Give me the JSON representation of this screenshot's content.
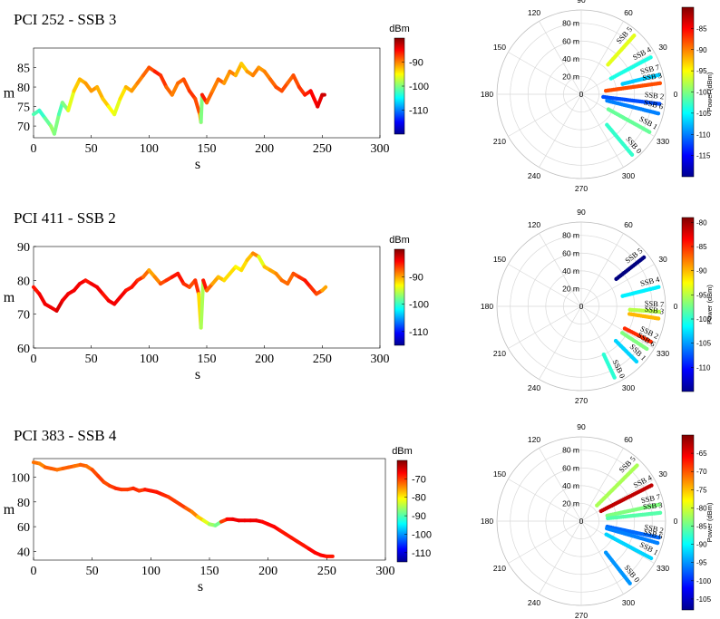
{
  "figure": {
    "panels": [
      {
        "title": "PCI 252 - SSB 3",
        "time": {
          "xlabel": "s",
          "ylabel": "m",
          "xlim": [
            0,
            300
          ],
          "ylim": [
            67,
            90
          ],
          "xticks": [
            0,
            50,
            100,
            150,
            200,
            250,
            300
          ],
          "yticks": [
            70,
            75,
            80,
            85
          ],
          "colorbar": {
            "label": "dBm",
            "range": [
              -120,
              -80
            ],
            "ticks": [
              -90,
              -100,
              -110
            ]
          }
        },
        "polar": {
          "colorbar": {
            "label": "Power (dBm)",
            "range": [
              -120,
              -80
            ],
            "ticks": [
              -85,
              -90,
              -95,
              -100,
              -105,
              -110,
              -115
            ]
          }
        }
      },
      {
        "title": "PCI 411 - SSB 2",
        "time": {
          "xlabel": "s",
          "ylabel": "m",
          "xlim": [
            0,
            300
          ],
          "ylim": [
            60,
            90
          ],
          "xticks": [
            0,
            50,
            100,
            150,
            200,
            250,
            300
          ],
          "yticks": [
            60,
            70,
            80,
            90
          ],
          "colorbar": {
            "label": "dBm",
            "range": [
              -115,
              -80
            ],
            "ticks": [
              -90,
              -100,
              -110
            ]
          }
        },
        "polar": {
          "colorbar": {
            "label": "Power (dBm)",
            "range": [
              -115,
              -79
            ],
            "ticks": [
              -80,
              -85,
              -90,
              -95,
              -100,
              -105,
              -110
            ]
          }
        }
      },
      {
        "title": "PCI 383 - SSB 4",
        "time": {
          "xlabel": "s",
          "ylabel": "m",
          "xlim": [
            0,
            300
          ],
          "ylim": [
            33,
            115
          ],
          "xticks": [
            0,
            50,
            100,
            150,
            200,
            250,
            300
          ],
          "yticks": [
            40,
            60,
            80,
            100
          ],
          "colorbar": {
            "label": "dBm",
            "range": [
              -115,
              -60
            ],
            "ticks": [
              -70,
              -80,
              -90,
              -100,
              -110
            ]
          }
        },
        "polar": {
          "colorbar": {
            "label": "Power (dBm)",
            "range": [
              -108,
              -60
            ],
            "ticks": [
              -65,
              -70,
              -75,
              -80,
              -85,
              -90,
              -95,
              -100,
              -105
            ]
          }
        }
      }
    ],
    "polar_axis": {
      "angle_labels": [
        "0",
        "30",
        "60",
        "90",
        "120",
        "150",
        "180",
        "210",
        "240",
        "270",
        "300",
        "330"
      ],
      "radius_labels": [
        "20 m",
        "40 m",
        "60 m",
        "80 m"
      ]
    }
  },
  "chart_data": [
    {
      "type": "scatter",
      "title": "PCI 252 - SSB 3",
      "xlabel": "s",
      "ylabel": "m",
      "xlim": [
        0,
        300
      ],
      "ylim": [
        67,
        90
      ],
      "colorbar_label": "dBm",
      "series": [
        {
          "x": [
            0,
            5,
            10,
            15,
            18,
            22,
            25,
            30,
            35,
            40,
            45,
            50,
            55,
            60,
            65,
            70,
            75,
            80,
            85,
            90,
            95,
            100,
            105,
            110,
            115,
            120,
            125,
            130,
            135,
            140,
            144,
            145,
            146,
            150,
            155,
            160,
            165,
            170,
            175,
            180,
            185,
            190,
            195,
            200,
            205,
            210,
            215,
            220,
            225,
            230,
            235,
            240,
            243,
            246,
            250,
            252
          ],
          "y": [
            73,
            74,
            72,
            70,
            68,
            73,
            76,
            74,
            79,
            82,
            81,
            79,
            80,
            77,
            75,
            73,
            77,
            80,
            79,
            81,
            83,
            85,
            84,
            83,
            80,
            78,
            81,
            82,
            79,
            77,
            73,
            71,
            78,
            76,
            79,
            82,
            81,
            84,
            83,
            86,
            84,
            83,
            85,
            84,
            82,
            80,
            79,
            81,
            83,
            80,
            78,
            79,
            77,
            75,
            78,
            78
          ],
          "power_dbm": [
            -102,
            -103,
            -101,
            -99,
            -100,
            -102,
            -100,
            -96,
            -93,
            -92,
            -91,
            -91,
            -92,
            -93,
            -95,
            -96,
            -94,
            -92,
            -91,
            -90,
            -89,
            -88,
            -86,
            -87,
            -89,
            -90,
            -89,
            -88,
            -87,
            -88,
            -92,
            -100,
            -86,
            -89,
            -90,
            -89,
            -91,
            -90,
            -92,
            -93,
            -91,
            -90,
            -91,
            -90,
            -89,
            -88,
            -88,
            -89,
            -88,
            -87,
            -86,
            -85,
            -85,
            -84,
            -83,
            -83
          ]
        }
      ]
    },
    {
      "type": "scatter",
      "title": "PCI 411 - SSB 2",
      "xlabel": "s",
      "ylabel": "m",
      "xlim": [
        0,
        300
      ],
      "ylim": [
        60,
        90
      ],
      "colorbar_label": "dBm",
      "series": [
        {
          "x": [
            0,
            5,
            10,
            15,
            20,
            25,
            30,
            35,
            40,
            45,
            50,
            55,
            60,
            65,
            70,
            75,
            80,
            85,
            90,
            95,
            100,
            105,
            110,
            115,
            120,
            125,
            130,
            135,
            140,
            143,
            145,
            147,
            150,
            155,
            160,
            165,
            170,
            175,
            180,
            185,
            190,
            195,
            200,
            205,
            210,
            215,
            220,
            225,
            230,
            235,
            240,
            245,
            250,
            253
          ],
          "y": [
            78,
            76,
            73,
            72,
            71,
            74,
            76,
            77,
            79,
            80,
            79,
            78,
            76,
            74,
            73,
            75,
            77,
            78,
            80,
            81,
            83,
            81,
            79,
            80,
            81,
            82,
            79,
            78,
            80,
            76,
            66,
            80,
            77,
            79,
            81,
            80,
            82,
            84,
            83,
            86,
            88,
            87,
            84,
            83,
            82,
            80,
            79,
            82,
            81,
            80,
            78,
            76,
            77,
            78
          ],
          "power_dbm": [
            -85,
            -84,
            -84,
            -84,
            -83,
            -84,
            -84,
            -84,
            -84,
            -85,
            -84,
            -84,
            -85,
            -84,
            -84,
            -84,
            -85,
            -85,
            -86,
            -88,
            -90,
            -89,
            -87,
            -86,
            -85,
            -85,
            -86,
            -87,
            -86,
            -92,
            -96,
            -85,
            -88,
            -90,
            -91,
            -92,
            -92,
            -93,
            -92,
            -91,
            -89,
            -94,
            -91,
            -90,
            -89,
            -88,
            -88,
            -87,
            -86,
            -85,
            -86,
            -87,
            -90,
            -92
          ]
        }
      ]
    },
    {
      "type": "scatter",
      "title": "PCI 383 - SSB 4",
      "xlabel": "s",
      "ylabel": "m",
      "xlim": [
        0,
        300
      ],
      "ylim": [
        33,
        115
      ],
      "colorbar_label": "dBm",
      "series": [
        {
          "x": [
            0,
            5,
            10,
            15,
            20,
            25,
            30,
            35,
            40,
            45,
            50,
            55,
            60,
            65,
            70,
            75,
            80,
            85,
            90,
            95,
            100,
            105,
            110,
            115,
            120,
            125,
            130,
            135,
            140,
            145,
            150,
            155,
            160,
            165,
            170,
            175,
            180,
            185,
            190,
            195,
            200,
            205,
            210,
            215,
            220,
            225,
            230,
            235,
            240,
            245,
            250,
            255
          ],
          "y": [
            112,
            111,
            108,
            107,
            106,
            107,
            108,
            109,
            110,
            109,
            106,
            101,
            96,
            93,
            91,
            90,
            90,
            91,
            89,
            90,
            89,
            88,
            86,
            84,
            81,
            78,
            75,
            72,
            68,
            65,
            62,
            61,
            64,
            66,
            66,
            65,
            65,
            65,
            65,
            64,
            62,
            60,
            57,
            54,
            51,
            48,
            45,
            42,
            39,
            37,
            36,
            36
          ],
          "power_dbm": [
            -73,
            -74,
            -72,
            -72,
            -73,
            -72,
            -72,
            -73,
            -72,
            -73,
            -71,
            -70,
            -71,
            -70,
            -69,
            -70,
            -70,
            -69,
            -70,
            -68,
            -68,
            -68,
            -69,
            -70,
            -70,
            -70,
            -72,
            -74,
            -78,
            -82,
            -86,
            -88,
            -70,
            -67,
            -66,
            -66,
            -66,
            -66,
            -66,
            -67,
            -67,
            -67,
            -68,
            -68,
            -68,
            -68,
            -68,
            -67,
            -67,
            -67,
            -68,
            -69
          ]
        }
      ]
    },
    {
      "type": "scatter",
      "subtype": "polar",
      "radial_unit": "m",
      "rlim": [
        0,
        95
      ],
      "colorbar_label": "Power (dBm)",
      "beams": [
        {
          "label": "SSB 5",
          "angle_deg": 48,
          "r": [
            45,
            90
          ],
          "power_dbm": -96
        },
        {
          "label": "SSB 4",
          "angle_deg": 28,
          "r": [
            38,
            90
          ],
          "power_dbm": -104
        },
        {
          "label": "SSB 7",
          "angle_deg": 14,
          "r": [
            48,
            90
          ],
          "power_dbm": -107
        },
        {
          "label": "SSB 3",
          "angle_deg": 8,
          "r": [
            28,
            90
          ],
          "power_dbm": -88
        },
        {
          "label": "SSB 2",
          "angle_deg": -7,
          "r": [
            25,
            90
          ],
          "power_dbm": -112
        },
        {
          "label": "SSB 6",
          "angle_deg": -14,
          "r": [
            30,
            90
          ],
          "power_dbm": -110
        },
        {
          "label": "SSB 1",
          "angle_deg": -29,
          "r": [
            35,
            90
          ],
          "power_dbm": -101
        },
        {
          "label": "SSB 0",
          "angle_deg": -50,
          "r": [
            45,
            90
          ],
          "power_dbm": -103
        }
      ]
    },
    {
      "type": "scatter",
      "subtype": "polar",
      "radial_unit": "m",
      "rlim": [
        0,
        95
      ],
      "colorbar_label": "Power (dBm)",
      "beams": [
        {
          "label": "SSB 5",
          "angle_deg": 38,
          "r": [
            50,
            90
          ],
          "power_dbm": -115
        },
        {
          "label": "SSB 4",
          "angle_deg": 14,
          "r": [
            48,
            90
          ],
          "power_dbm": -102
        },
        {
          "label": "SSB 7",
          "angle_deg": -4,
          "r": [
            55,
            90
          ],
          "power_dbm": -95
        },
        {
          "label": "SSB 3",
          "angle_deg": -9,
          "r": [
            55,
            90
          ],
          "power_dbm": -90
        },
        {
          "label": "SSB 2",
          "angle_deg": -27,
          "r": [
            55,
            90
          ],
          "power_dbm": -85
        },
        {
          "label": "SSB 6",
          "angle_deg": -33,
          "r": [
            55,
            90
          ],
          "power_dbm": -97
        },
        {
          "label": "SSB 1",
          "angle_deg": -45,
          "r": [
            55,
            90
          ],
          "power_dbm": -103
        },
        {
          "label": "SSB 0",
          "angle_deg": -65,
          "r": [
            60,
            90
          ],
          "power_dbm": -100
        }
      ]
    },
    {
      "type": "scatter",
      "subtype": "polar",
      "radial_unit": "m",
      "rlim": [
        0,
        95
      ],
      "colorbar_label": "Power (dBm)",
      "beams": [
        {
          "label": "SSB 5",
          "angle_deg": 45,
          "r": [
            25,
            90
          ],
          "power_dbm": -82
        },
        {
          "label": "SSB 4",
          "angle_deg": 27,
          "r": [
            25,
            90
          ],
          "power_dbm": -63
        },
        {
          "label": "SSB 7",
          "angle_deg": 12,
          "r": [
            30,
            90
          ],
          "power_dbm": -84
        },
        {
          "label": "SSB 3",
          "angle_deg": 6,
          "r": [
            30,
            90
          ],
          "power_dbm": -86
        },
        {
          "label": "SSB 2",
          "angle_deg": -12,
          "r": [
            30,
            90
          ],
          "power_dbm": -97
        },
        {
          "label": "SSB 6",
          "angle_deg": -16,
          "r": [
            30,
            90
          ],
          "power_dbm": -96
        },
        {
          "label": "SSB 1",
          "angle_deg": -28,
          "r": [
            32,
            90
          ],
          "power_dbm": -92
        },
        {
          "label": "SSB 0",
          "angle_deg": -52,
          "r": [
            45,
            90
          ],
          "power_dbm": -95
        }
      ]
    }
  ]
}
